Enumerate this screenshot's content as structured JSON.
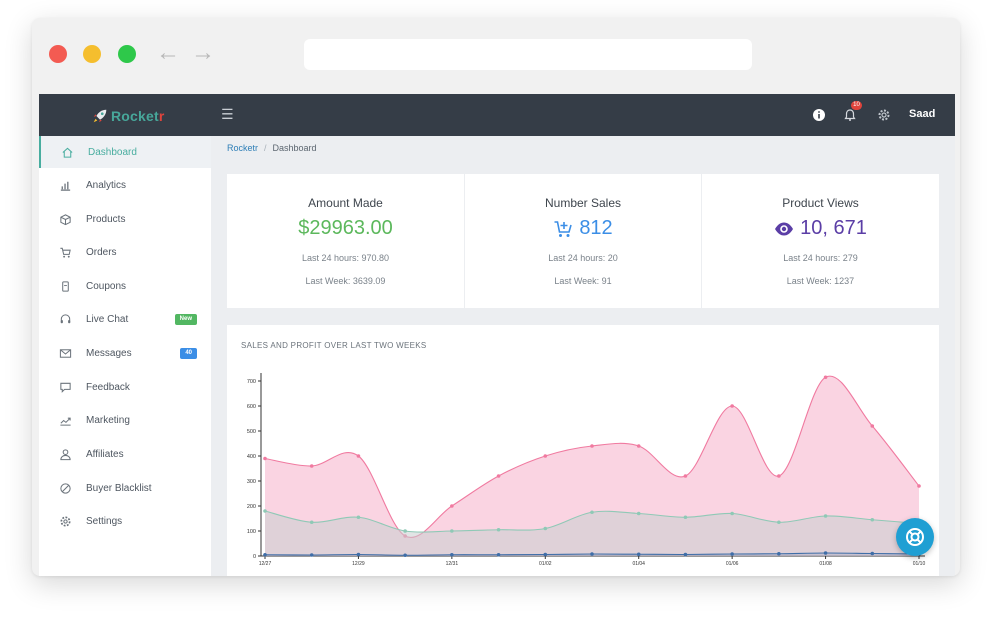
{
  "brand": {
    "name_main": "Rocket",
    "name_tail": "r",
    "main_color": "#47a79a",
    "tail_color": "#e0443c"
  },
  "topnav": {
    "menu_icon": "menu-icon",
    "notification_count": "10",
    "user": "Saad"
  },
  "sidebar": {
    "items": [
      {
        "label": "Dashboard",
        "icon": "home-icon",
        "active": true
      },
      {
        "label": "Analytics",
        "icon": "bar-chart-icon"
      },
      {
        "label": "Products",
        "icon": "box-icon"
      },
      {
        "label": "Orders",
        "icon": "cart-icon"
      },
      {
        "label": "Coupons",
        "icon": "coupon-icon"
      },
      {
        "label": "Live Chat",
        "icon": "headset-icon",
        "badge": "New"
      },
      {
        "label": "Messages",
        "icon": "mail-icon",
        "badge": "40"
      },
      {
        "label": "Feedback",
        "icon": "chat-icon"
      },
      {
        "label": "Marketing",
        "icon": "trend-icon"
      },
      {
        "label": "Affiliates",
        "icon": "user-icon"
      },
      {
        "label": "Buyer Blacklist",
        "icon": "block-icon"
      },
      {
        "label": "Settings",
        "icon": "gear-icon"
      }
    ]
  },
  "breadcrumb": {
    "root": "Rocketr",
    "sep": "/",
    "current": "Dashboard"
  },
  "stats": [
    {
      "title": "Amount Made",
      "value": "$29963.00",
      "color": "#5cb85c",
      "icon": "",
      "line1": "Last 24 hours: 970.80",
      "line2": "Last Week: 3639.09"
    },
    {
      "title": "Number Sales",
      "value": "812",
      "color": "#3b8ee6",
      "icon": "cart-plus-icon",
      "line1": "Last 24 hours: 20",
      "line2": "Last Week: 91"
    },
    {
      "title": "Product Views",
      "value": "10, 671",
      "color": "#5b3ea6",
      "icon": "eye-icon",
      "line1": "Last 24 hours: 279",
      "line2": "Last Week: 1237"
    }
  ],
  "chart_data": {
    "type": "area",
    "title": "SALES AND PROFIT OVER LAST TWO WEEKS",
    "ylim": [
      0,
      700
    ],
    "y_ticks": [
      0,
      100,
      200,
      300,
      400,
      500,
      600,
      700
    ],
    "x_tick_labels": [
      "12/27",
      "12/29",
      "12/31",
      "01/02",
      "01/04",
      "01/06",
      "01/08",
      "01/10"
    ],
    "series": [
      {
        "values": [
          390,
          360,
          400,
          80,
          200,
          320,
          400,
          440,
          440,
          320,
          600,
          320,
          715,
          520,
          280
        ],
        "color": "#f07aa0"
      },
      {
        "values": [
          180,
          135,
          155,
          100,
          100,
          105,
          110,
          175,
          170,
          155,
          170,
          135,
          160,
          145,
          130
        ],
        "color": "#8fc9b6"
      },
      {
        "values": [
          5,
          4,
          6,
          3,
          5,
          5,
          6,
          8,
          7,
          6,
          8,
          9,
          12,
          10,
          8
        ],
        "color": "#3f6ea8"
      }
    ],
    "grid": false
  },
  "help": {
    "icon": "lifebuoy-icon"
  }
}
